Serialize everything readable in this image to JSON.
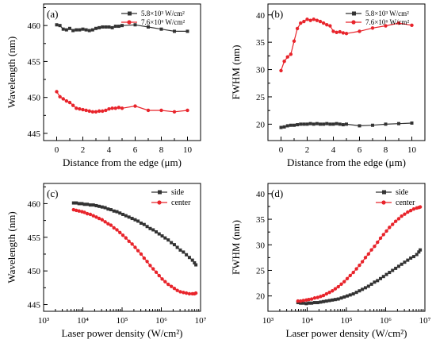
{
  "colors": {
    "black": "#333333",
    "red": "#e8242b"
  },
  "chart_data": [
    {
      "panel": "(a)",
      "type": "line",
      "xlabel": "Distance from the edge (μm)",
      "ylabel": "Wavelength (nm)",
      "xlim": [
        -1,
        11
      ],
      "ylim": [
        444,
        463
      ],
      "xticks": [
        0,
        2,
        4,
        6,
        8,
        10
      ],
      "yticks": [
        445,
        450,
        455,
        460
      ],
      "legend": "top-right",
      "series": [
        {
          "name": "5.8×10³ W/cm²",
          "color": "black",
          "marker": "square",
          "x": [
            0,
            0.25,
            0.5,
            0.75,
            1,
            1.25,
            1.5,
            1.75,
            2,
            2.25,
            2.5,
            2.75,
            3,
            3.25,
            3.5,
            3.75,
            4,
            4.25,
            4.5,
            4.75,
            5,
            6,
            7,
            8,
            9,
            10
          ],
          "y": [
            460.1,
            460.0,
            459.5,
            459.4,
            459.6,
            459.3,
            459.4,
            459.4,
            459.5,
            459.4,
            459.3,
            459.4,
            459.6,
            459.7,
            459.8,
            459.8,
            459.8,
            459.7,
            459.9,
            459.9,
            460.0,
            460.1,
            459.8,
            459.5,
            459.2,
            459.2
          ]
        },
        {
          "name": "7.6×10⁶ W/cm²",
          "color": "red",
          "marker": "circle",
          "x": [
            0,
            0.25,
            0.5,
            0.75,
            1,
            1.25,
            1.5,
            1.75,
            2,
            2.25,
            2.5,
            2.75,
            3,
            3.25,
            3.5,
            3.75,
            4,
            4.25,
            4.5,
            4.75,
            5,
            6,
            7,
            8,
            9,
            10
          ],
          "y": [
            450.8,
            450.1,
            449.8,
            449.5,
            449.3,
            448.9,
            448.5,
            448.4,
            448.3,
            448.2,
            448.1,
            448.0,
            448.0,
            448.1,
            448.1,
            448.2,
            448.4,
            448.5,
            448.5,
            448.6,
            448.5,
            448.8,
            448.2,
            448.2,
            448.0,
            448.2
          ]
        }
      ]
    },
    {
      "panel": "(b)",
      "type": "line",
      "xlabel": "Distance from the edge (μm)",
      "ylabel": "FWHM (nm)",
      "xlim": [
        -1,
        11
      ],
      "ylim": [
        17,
        42
      ],
      "xticks": [
        0,
        2,
        4,
        6,
        8,
        10
      ],
      "yticks": [
        20,
        25,
        30,
        35,
        40
      ],
      "legend": "top-right",
      "series": [
        {
          "name": "5.8×10³ W/cm²",
          "color": "black",
          "marker": "square",
          "x": [
            0,
            0.25,
            0.5,
            0.75,
            1,
            1.25,
            1.5,
            1.75,
            2,
            2.25,
            2.5,
            2.75,
            3,
            3.25,
            3.5,
            3.75,
            4,
            4.25,
            4.5,
            4.75,
            5,
            6,
            7,
            8,
            9,
            10
          ],
          "y": [
            19.4,
            19.5,
            19.7,
            19.8,
            19.8,
            19.9,
            20.0,
            20.0,
            20.0,
            20.1,
            20.0,
            20.1,
            20.0,
            20.0,
            20.1,
            20.0,
            20.0,
            20.1,
            20.0,
            19.9,
            20.0,
            19.7,
            19.8,
            20.0,
            20.1,
            20.2
          ]
        },
        {
          "name": "7.6×10⁶ W/cm²",
          "color": "red",
          "marker": "circle",
          "x": [
            0,
            0.25,
            0.5,
            0.75,
            1,
            1.25,
            1.5,
            1.75,
            2,
            2.25,
            2.5,
            2.75,
            3,
            3.25,
            3.5,
            3.75,
            4,
            4.25,
            4.5,
            4.75,
            5,
            6,
            7,
            8,
            9,
            10
          ],
          "y": [
            29.8,
            31.5,
            32.3,
            32.8,
            35.2,
            37.5,
            38.5,
            38.8,
            39.2,
            39.0,
            39.2,
            39.0,
            38.8,
            38.5,
            38.2,
            38.0,
            37.0,
            36.8,
            36.9,
            36.7,
            36.6,
            37.0,
            37.6,
            38.0,
            38.5,
            38.1
          ]
        }
      ]
    },
    {
      "panel": "(c)",
      "type": "line",
      "xscale": "log",
      "xlabel": "Laser power density (W/cm²)",
      "ylabel": "Wavelength (nm)",
      "xlim": [
        1000,
        10000000
      ],
      "ylim": [
        444,
        463
      ],
      "xticks": [
        "10³",
        "10⁴",
        "10⁵",
        "10⁶",
        "10⁷"
      ],
      "yticks": [
        445,
        450,
        455,
        460
      ],
      "legend": "top-right",
      "series": [
        {
          "name": "side",
          "color": "black",
          "marker": "square",
          "x": [
            5800,
            6800,
            8000,
            9500,
            11000,
            13000,
            15500,
            18500,
            22000,
            26000,
            31000,
            37000,
            44000,
            52000,
            62000,
            74000,
            88000,
            105000,
            125000,
            150000,
            180000,
            215000,
            255000,
            305000,
            365000,
            435000,
            520000,
            620000,
            740000,
            880000,
            1050000,
            1250000,
            1500000,
            1800000,
            2150000,
            2550000,
            3050000,
            3650000,
            4350000,
            5200000,
            6200000,
            7000000,
            7600000
          ],
          "y": [
            460.1,
            460.1,
            460.0,
            460.0,
            459.9,
            459.9,
            459.8,
            459.8,
            459.7,
            459.6,
            459.5,
            459.4,
            459.2,
            459.1,
            458.9,
            458.8,
            458.6,
            458.4,
            458.2,
            458.0,
            457.8,
            457.6,
            457.4,
            457.1,
            456.9,
            456.6,
            456.3,
            456.1,
            455.8,
            455.5,
            455.2,
            454.9,
            454.6,
            454.2,
            453.9,
            453.5,
            453.1,
            452.8,
            452.4,
            452.0,
            451.6,
            451.2,
            450.9
          ]
        },
        {
          "name": "center",
          "color": "red",
          "marker": "circle",
          "x": [
            5800,
            6800,
            8000,
            9500,
            11000,
            13000,
            15500,
            18500,
            22000,
            26000,
            31000,
            37000,
            44000,
            52000,
            62000,
            74000,
            88000,
            105000,
            125000,
            150000,
            180000,
            215000,
            255000,
            305000,
            365000,
            435000,
            520000,
            620000,
            740000,
            880000,
            1050000,
            1250000,
            1500000,
            1800000,
            2150000,
            2550000,
            3050000,
            3650000,
            4350000,
            5200000,
            6200000,
            7000000,
            7600000
          ],
          "y": [
            459.1,
            459.0,
            458.9,
            458.8,
            458.7,
            458.5,
            458.4,
            458.2,
            458.0,
            457.8,
            457.6,
            457.3,
            457.0,
            456.8,
            456.4,
            456.1,
            455.7,
            455.3,
            454.9,
            454.4,
            454.0,
            453.5,
            453.0,
            452.5,
            451.9,
            451.4,
            450.8,
            450.3,
            449.8,
            449.3,
            448.8,
            448.4,
            448.0,
            447.7,
            447.4,
            447.1,
            446.9,
            446.8,
            446.7,
            446.6,
            446.6,
            446.6,
            446.7
          ]
        }
      ]
    },
    {
      "panel": "(d)",
      "type": "line",
      "xscale": "log",
      "xlabel": "Laser power density (W/cm²)",
      "ylabel": "FWHM (nm)",
      "xlim": [
        1000,
        10000000
      ],
      "ylim": [
        17,
        42
      ],
      "xticks": [
        "10³",
        "10⁴",
        "10⁵",
        "10⁶",
        "10⁷"
      ],
      "yticks": [
        20,
        25,
        30,
        35,
        40
      ],
      "legend": "top-right",
      "series": [
        {
          "name": "side",
          "color": "black",
          "marker": "square",
          "x": [
            5800,
            6800,
            8000,
            9500,
            11000,
            13000,
            15500,
            18500,
            22000,
            26000,
            31000,
            37000,
            44000,
            52000,
            62000,
            74000,
            88000,
            105000,
            125000,
            150000,
            180000,
            215000,
            255000,
            305000,
            365000,
            435000,
            520000,
            620000,
            740000,
            880000,
            1050000,
            1250000,
            1500000,
            1800000,
            2150000,
            2550000,
            3050000,
            3650000,
            4350000,
            5200000,
            6200000,
            7000000,
            7600000
          ],
          "y": [
            18.7,
            18.6,
            18.6,
            18.5,
            18.6,
            18.6,
            18.7,
            18.7,
            18.8,
            18.9,
            19.0,
            19.1,
            19.2,
            19.3,
            19.4,
            19.6,
            19.8,
            20.0,
            20.2,
            20.4,
            20.7,
            21.0,
            21.3,
            21.6,
            21.9,
            22.3,
            22.7,
            23.0,
            23.4,
            23.8,
            24.2,
            24.6,
            25.0,
            25.4,
            25.8,
            26.2,
            26.6,
            27.0,
            27.4,
            27.7,
            28.1,
            28.6,
            29.0
          ]
        },
        {
          "name": "center",
          "color": "red",
          "marker": "circle",
          "x": [
            5800,
            6800,
            8000,
            9500,
            11000,
            13000,
            15500,
            18500,
            22000,
            26000,
            31000,
            37000,
            44000,
            52000,
            62000,
            74000,
            88000,
            105000,
            125000,
            150000,
            180000,
            215000,
            255000,
            305000,
            365000,
            435000,
            520000,
            620000,
            740000,
            880000,
            1050000,
            1250000,
            1500000,
            1800000,
            2150000,
            2550000,
            3050000,
            3650000,
            4350000,
            5200000,
            6200000,
            7000000,
            7600000
          ],
          "y": [
            19.0,
            19.0,
            19.1,
            19.2,
            19.3,
            19.4,
            19.6,
            19.7,
            19.9,
            20.1,
            20.4,
            20.7,
            21.0,
            21.4,
            21.8,
            22.3,
            22.8,
            23.4,
            24.0,
            24.6,
            25.3,
            26.0,
            26.7,
            27.5,
            28.2,
            29.0,
            29.7,
            30.5,
            31.3,
            32.0,
            32.7,
            33.4,
            34.0,
            34.6,
            35.1,
            35.6,
            36.0,
            36.4,
            36.7,
            37.0,
            37.2,
            37.3,
            37.4
          ]
        }
      ]
    }
  ]
}
